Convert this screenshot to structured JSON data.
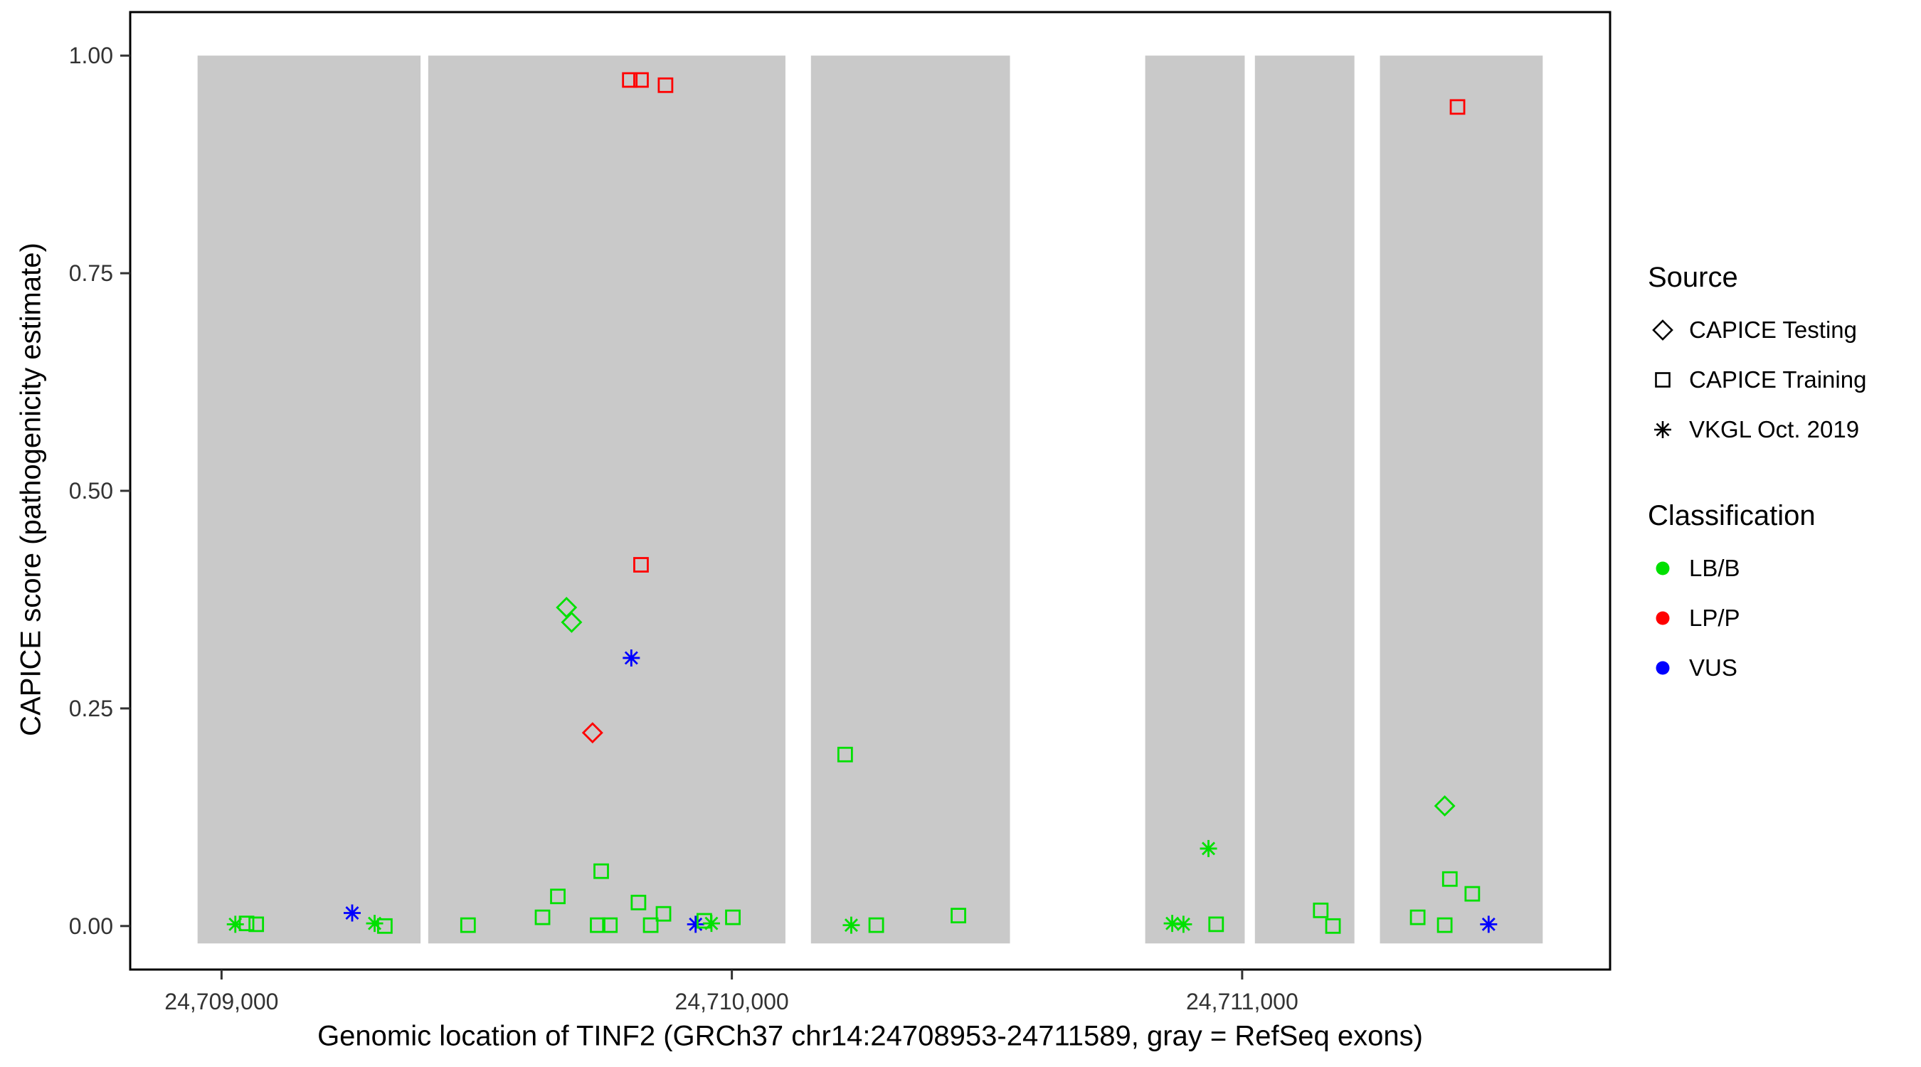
{
  "figure": {
    "background": "#FFFFFF",
    "panel_background": "#FFFFFF",
    "panel_border_color": "#000000",
    "exon_fill": "#C9C9C9",
    "tick_color": "#333333",
    "tick_label_color": "#333333"
  },
  "chart_data": {
    "type": "scatter",
    "title": "",
    "xlabel": "Genomic location of TINF2 (GRCh37 chr14:24708953-24711589, gray = RefSeq exons)",
    "ylabel": "CAPICE score (pathogenicity estimate)",
    "xlim": [
      24708821,
      24711721
    ],
    "ylim": [
      -0.05,
      1.05
    ],
    "grid": false,
    "x_ticks": [
      {
        "value": 24709000,
        "label": "24,709,000"
      },
      {
        "value": 24710000,
        "label": "24,710,000"
      },
      {
        "value": 24711000,
        "label": "24,711,000"
      }
    ],
    "y_ticks": [
      {
        "value": 0.0,
        "label": "0.00"
      },
      {
        "value": 0.25,
        "label": "0.25"
      },
      {
        "value": 0.5,
        "label": "0.50"
      },
      {
        "value": 0.75,
        "label": "0.75"
      },
      {
        "value": 1.0,
        "label": "1.00"
      }
    ],
    "exon_band_y": [
      -0.02,
      1.0
    ],
    "exons": [
      [
        24708953,
        24709390
      ],
      [
        24709405,
        24710105
      ],
      [
        24710155,
        24710545
      ],
      [
        24710810,
        24711005
      ],
      [
        24711025,
        24711220
      ],
      [
        24711270,
        24711589
      ]
    ],
    "shape_map": {
      "CAPICE Testing": "diamond",
      "CAPICE Training": "square",
      "VKGL Oct. 2019": "asterisk"
    },
    "color_map": {
      "LB/B": "#00E000",
      "LP/P": "#FF0000",
      "VUS": "#0000FF"
    },
    "points": [
      {
        "x": 24709800,
        "y": 0.972,
        "source": "CAPICE Training",
        "class": "LP/P"
      },
      {
        "x": 24709822,
        "y": 0.972,
        "source": "CAPICE Training",
        "class": "LP/P"
      },
      {
        "x": 24709870,
        "y": 0.966,
        "source": "CAPICE Training",
        "class": "LP/P"
      },
      {
        "x": 24711422,
        "y": 0.941,
        "source": "CAPICE Training",
        "class": "LP/P"
      },
      {
        "x": 24709822,
        "y": 0.415,
        "source": "CAPICE Training",
        "class": "LP/P"
      },
      {
        "x": 24709676,
        "y": 0.366,
        "source": "CAPICE Testing",
        "class": "LB/B"
      },
      {
        "x": 24709686,
        "y": 0.349,
        "source": "CAPICE Testing",
        "class": "LB/B"
      },
      {
        "x": 24709803,
        "y": 0.308,
        "source": "VKGL Oct. 2019",
        "class": "VUS"
      },
      {
        "x": 24709727,
        "y": 0.222,
        "source": "CAPICE Testing",
        "class": "LP/P"
      },
      {
        "x": 24710222,
        "y": 0.197,
        "source": "CAPICE Training",
        "class": "LB/B"
      },
      {
        "x": 24711397,
        "y": 0.138,
        "source": "CAPICE Testing",
        "class": "LB/B"
      },
      {
        "x": 24710934,
        "y": 0.089,
        "source": "VKGL Oct. 2019",
        "class": "LB/B"
      },
      {
        "x": 24709744,
        "y": 0.063,
        "source": "CAPICE Training",
        "class": "LB/B"
      },
      {
        "x": 24711407,
        "y": 0.054,
        "source": "CAPICE Training",
        "class": "LB/B"
      },
      {
        "x": 24709027,
        "y": 0.002,
        "source": "VKGL Oct. 2019",
        "class": "LB/B"
      },
      {
        "x": 24709049,
        "y": 0.003,
        "source": "CAPICE Training",
        "class": "LB/B"
      },
      {
        "x": 24709068,
        "y": 0.002,
        "source": "CAPICE Training",
        "class": "LB/B"
      },
      {
        "x": 24709256,
        "y": 0.015,
        "source": "VKGL Oct. 2019",
        "class": "VUS"
      },
      {
        "x": 24709300,
        "y": 0.003,
        "source": "VKGL Oct. 2019",
        "class": "LB/B"
      },
      {
        "x": 24709320,
        "y": 0.0,
        "source": "CAPICE Training",
        "class": "LB/B"
      },
      {
        "x": 24709483,
        "y": 0.001,
        "source": "CAPICE Training",
        "class": "LB/B"
      },
      {
        "x": 24709629,
        "y": 0.01,
        "source": "CAPICE Training",
        "class": "LB/B"
      },
      {
        "x": 24709659,
        "y": 0.034,
        "source": "CAPICE Training",
        "class": "LB/B"
      },
      {
        "x": 24709737,
        "y": 0.001,
        "source": "CAPICE Training",
        "class": "LB/B"
      },
      {
        "x": 24709761,
        "y": 0.001,
        "source": "CAPICE Training",
        "class": "LB/B"
      },
      {
        "x": 24709817,
        "y": 0.027,
        "source": "CAPICE Training",
        "class": "LB/B"
      },
      {
        "x": 24709841,
        "y": 0.001,
        "source": "CAPICE Training",
        "class": "LB/B"
      },
      {
        "x": 24709866,
        "y": 0.014,
        "source": "CAPICE Training",
        "class": "LB/B"
      },
      {
        "x": 24709929,
        "y": 0.002,
        "source": "VKGL Oct. 2019",
        "class": "VUS"
      },
      {
        "x": 24709946,
        "y": 0.006,
        "source": "CAPICE Training",
        "class": "LB/B"
      },
      {
        "x": 24709960,
        "y": 0.003,
        "source": "VKGL Oct. 2019",
        "class": "LB/B"
      },
      {
        "x": 24710002,
        "y": 0.01,
        "source": "CAPICE Training",
        "class": "LB/B"
      },
      {
        "x": 24710234,
        "y": 0.001,
        "source": "VKGL Oct. 2019",
        "class": "LB/B"
      },
      {
        "x": 24710283,
        "y": 0.001,
        "source": "CAPICE Training",
        "class": "LB/B"
      },
      {
        "x": 24710444,
        "y": 0.012,
        "source": "CAPICE Training",
        "class": "LB/B"
      },
      {
        "x": 24710863,
        "y": 0.003,
        "source": "VKGL Oct. 2019",
        "class": "LB/B"
      },
      {
        "x": 24710885,
        "y": 0.002,
        "source": "VKGL Oct. 2019",
        "class": "LB/B"
      },
      {
        "x": 24710949,
        "y": 0.002,
        "source": "CAPICE Training",
        "class": "LB/B"
      },
      {
        "x": 24711154,
        "y": 0.018,
        "source": "CAPICE Training",
        "class": "LB/B"
      },
      {
        "x": 24711178,
        "y": 0.0,
        "source": "CAPICE Training",
        "class": "LB/B"
      },
      {
        "x": 24711344,
        "y": 0.01,
        "source": "CAPICE Training",
        "class": "LB/B"
      },
      {
        "x": 24711397,
        "y": 0.001,
        "source": "CAPICE Training",
        "class": "LB/B"
      },
      {
        "x": 24711451,
        "y": 0.037,
        "source": "CAPICE Training",
        "class": "LB/B"
      },
      {
        "x": 24711483,
        "y": 0.002,
        "source": "VKGL Oct. 2019",
        "class": "VUS"
      }
    ],
    "legend": {
      "source_title": "Source",
      "source_items": [
        {
          "label": "CAPICE Testing",
          "shape": "diamond"
        },
        {
          "label": "CAPICE Training",
          "shape": "square"
        },
        {
          "label": "VKGL Oct. 2019",
          "shape": "asterisk"
        }
      ],
      "class_title": "Classification",
      "class_items": [
        {
          "label": "LB/B",
          "color": "#00E000"
        },
        {
          "label": "LP/P",
          "color": "#FF0000"
        },
        {
          "label": "VUS",
          "color": "#0000FF"
        }
      ]
    }
  }
}
